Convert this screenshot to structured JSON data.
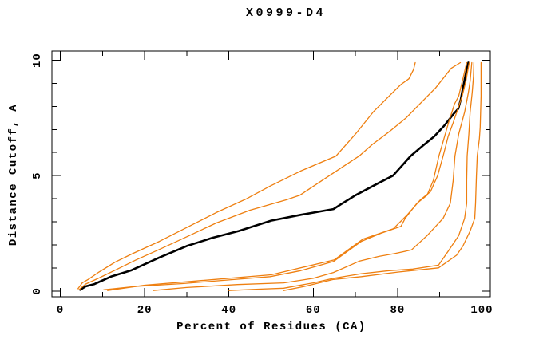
{
  "title": "X0999-D4",
  "colors": {
    "background": "#ffffff",
    "axis": "#000000",
    "orange_curve": "#ee7f10",
    "black_curve": "#000000"
  },
  "chart_data": {
    "type": "line",
    "title": "X0999-D4",
    "xlabel": "Percent of Residues (CA)",
    "ylabel": "Distance Cutoff, A",
    "xlim": [
      -2,
      102
    ],
    "ylim": [
      -0.25,
      10.4
    ],
    "grid": false,
    "legend": null,
    "x_ticks": {
      "major": [
        0,
        20,
        40,
        60,
        80,
        100
      ],
      "minor": [
        10,
        30,
        50,
        70,
        90
      ],
      "labels": [
        "0",
        "20",
        "40",
        "60",
        "80",
        "100"
      ]
    },
    "y_ticks": {
      "major": [
        0,
        5,
        10
      ],
      "minor": [
        1,
        2,
        3,
        4,
        6,
        7,
        8,
        9
      ],
      "labels": [
        "0",
        "5",
        "10"
      ]
    },
    "series": [
      {
        "name": "black-reference",
        "color": "#000000",
        "width": 2.6,
        "points": [
          [
            4.7,
            0.05
          ],
          [
            6,
            0.2
          ],
          [
            8.1,
            0.3
          ],
          [
            12,
            0.62
          ],
          [
            16.9,
            0.9
          ],
          [
            23.5,
            1.45
          ],
          [
            30,
            1.95
          ],
          [
            36,
            2.3
          ],
          [
            42.3,
            2.6
          ],
          [
            50,
            3.05
          ],
          [
            57,
            3.3
          ],
          [
            64.8,
            3.55
          ],
          [
            66.5,
            3.75
          ],
          [
            70,
            4.15
          ],
          [
            75.2,
            4.65
          ],
          [
            78.9,
            5.0
          ],
          [
            83.1,
            5.85
          ],
          [
            86,
            6.3
          ],
          [
            88.7,
            6.7
          ],
          [
            91,
            7.15
          ],
          [
            93.4,
            7.7
          ],
          [
            94.4,
            7.9
          ],
          [
            95,
            8.3
          ],
          [
            95.5,
            8.8
          ],
          [
            96.3,
            9.5
          ],
          [
            96.8,
            9.9
          ]
        ]
      },
      {
        "name": "orange-1",
        "color": "#ee7f10",
        "width": 1.3,
        "points": [
          [
            4.2,
            0.1
          ],
          [
            5.2,
            0.35
          ],
          [
            6.6,
            0.5
          ],
          [
            9,
            0.8
          ],
          [
            13,
            1.25
          ],
          [
            16.9,
            1.6
          ],
          [
            23.5,
            2.15
          ],
          [
            30,
            2.75
          ],
          [
            37,
            3.4
          ],
          [
            44.2,
            4.0
          ],
          [
            49.8,
            4.55
          ],
          [
            57,
            5.2
          ],
          [
            65.4,
            5.85
          ],
          [
            70,
            6.8
          ],
          [
            74.2,
            7.75
          ],
          [
            78,
            8.45
          ],
          [
            80.8,
            8.95
          ],
          [
            82.7,
            9.2
          ],
          [
            83.8,
            9.6
          ],
          [
            84.2,
            9.9
          ]
        ]
      },
      {
        "name": "orange-2",
        "color": "#ee7f10",
        "width": 1.3,
        "points": [
          [
            4.4,
            0.05
          ],
          [
            6,
            0.3
          ],
          [
            9,
            0.55
          ],
          [
            13,
            0.9
          ],
          [
            18,
            1.35
          ],
          [
            23.5,
            1.8
          ],
          [
            30,
            2.35
          ],
          [
            37,
            2.95
          ],
          [
            45,
            3.5
          ],
          [
            53.6,
            3.95
          ],
          [
            56.8,
            4.15
          ],
          [
            63,
            4.9
          ],
          [
            70.9,
            5.85
          ],
          [
            74,
            6.35
          ],
          [
            78,
            6.9
          ],
          [
            82,
            7.5
          ],
          [
            85.5,
            8.15
          ],
          [
            89,
            8.8
          ],
          [
            92.7,
            9.65
          ],
          [
            94.9,
            9.9
          ]
        ]
      },
      {
        "name": "orange-3",
        "color": "#ee7f10",
        "width": 1.3,
        "points": [
          [
            10.3,
            0.05
          ],
          [
            18,
            0.2
          ],
          [
            29,
            0.32
          ],
          [
            40,
            0.48
          ],
          [
            49.8,
            0.62
          ],
          [
            57,
            0.88
          ],
          [
            64.8,
            1.28
          ],
          [
            68,
            1.7
          ],
          [
            71.4,
            2.15
          ],
          [
            76,
            2.5
          ],
          [
            80.8,
            2.8
          ],
          [
            81.8,
            3.15
          ],
          [
            84.6,
            3.8
          ],
          [
            87,
            4.15
          ],
          [
            88.5,
            4.8
          ],
          [
            89.8,
            5.85
          ],
          [
            91,
            6.6
          ],
          [
            92.1,
            7.3
          ],
          [
            93.5,
            8.1
          ],
          [
            94.5,
            8.45
          ],
          [
            95.5,
            9.2
          ],
          [
            96.4,
            9.9
          ]
        ]
      },
      {
        "name": "orange-4",
        "color": "#ee7f10",
        "width": 1.3,
        "points": [
          [
            11.2,
            0.02
          ],
          [
            20,
            0.25
          ],
          [
            30,
            0.4
          ],
          [
            50,
            0.7
          ],
          [
            65,
            1.35
          ],
          [
            71.8,
            2.25
          ],
          [
            79,
            2.7
          ],
          [
            82.3,
            3.3
          ],
          [
            85.4,
            3.95
          ],
          [
            87.8,
            4.3
          ],
          [
            89.5,
            5.0
          ],
          [
            90.8,
            5.85
          ],
          [
            92,
            6.7
          ],
          [
            93.2,
            7.3
          ],
          [
            94.3,
            7.9
          ],
          [
            95.4,
            8.5
          ],
          [
            96.2,
            9.1
          ],
          [
            97,
            9.9
          ]
        ]
      },
      {
        "name": "orange-5",
        "color": "#ee7f10",
        "width": 1.3,
        "points": [
          [
            22,
            0.02
          ],
          [
            30,
            0.15
          ],
          [
            42,
            0.28
          ],
          [
            53,
            0.35
          ],
          [
            60,
            0.55
          ],
          [
            64.8,
            0.8
          ],
          [
            71,
            1.3
          ],
          [
            75.6,
            1.5
          ],
          [
            79.3,
            1.62
          ],
          [
            83.3,
            1.78
          ],
          [
            87,
            2.4
          ],
          [
            90.8,
            3.15
          ],
          [
            92.5,
            3.8
          ],
          [
            93.2,
            4.8
          ],
          [
            93.6,
            5.85
          ],
          [
            94.5,
            6.8
          ],
          [
            95.9,
            7.75
          ],
          [
            96.8,
            8.6
          ],
          [
            97.2,
            9.1
          ],
          [
            97.6,
            9.9
          ]
        ]
      },
      {
        "name": "orange-6",
        "color": "#ee7f10",
        "width": 1.3,
        "points": [
          [
            40,
            0.02
          ],
          [
            47,
            0.08
          ],
          [
            53,
            0.12
          ],
          [
            60,
            0.35
          ],
          [
            64.8,
            0.55
          ],
          [
            71.4,
            0.75
          ],
          [
            78,
            0.88
          ],
          [
            83.6,
            0.95
          ],
          [
            89.7,
            1.12
          ],
          [
            92.1,
            1.75
          ],
          [
            94.5,
            2.4
          ],
          [
            95.9,
            3.15
          ],
          [
            96.4,
            3.8
          ],
          [
            96.4,
            4.8
          ],
          [
            96.5,
            5.85
          ],
          [
            96.9,
            6.8
          ],
          [
            97.2,
            7.75
          ],
          [
            97.7,
            8.6
          ],
          [
            98,
            9.3
          ],
          [
            98.1,
            9.9
          ]
        ]
      },
      {
        "name": "orange-7",
        "color": "#ee7f10",
        "width": 1.3,
        "points": [
          [
            53,
            0.02
          ],
          [
            58,
            0.2
          ],
          [
            64.8,
            0.5
          ],
          [
            71.4,
            0.62
          ],
          [
            80,
            0.82
          ],
          [
            89.7,
            1.0
          ],
          [
            94,
            1.55
          ],
          [
            95.5,
            1.95
          ],
          [
            97.2,
            2.6
          ],
          [
            98.3,
            3.15
          ],
          [
            98.5,
            3.8
          ],
          [
            98.7,
            5.0
          ],
          [
            98.9,
            5.85
          ],
          [
            99.4,
            6.6
          ],
          [
            99.6,
            7.1
          ],
          [
            99.8,
            8.45
          ],
          [
            99.8,
            9.9
          ]
        ]
      }
    ]
  }
}
